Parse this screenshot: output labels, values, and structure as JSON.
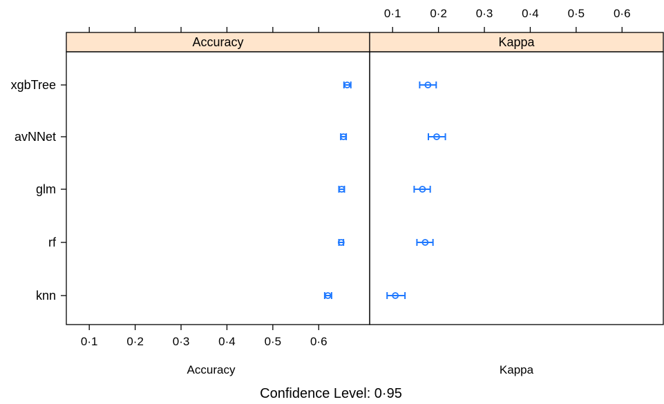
{
  "chart_data": {
    "type": "dotplot-ci",
    "footer": "Confidence Level: 0·95",
    "categories": [
      "xgbTree",
      "avNNet",
      "glm",
      "rf",
      "knn"
    ],
    "xlim": [
      0.05,
      0.705
    ],
    "tick_values": [
      0.1,
      0.2,
      0.3,
      0.4,
      0.5,
      0.6
    ],
    "tick_labels": [
      "0·1",
      "0·2",
      "0·3",
      "0·4",
      "0·5",
      "0·6"
    ],
    "panels": [
      {
        "strip": "Accuracy",
        "xlabel": "Accuracy",
        "tick_side": "bottom",
        "points": [
          {
            "model": "xgbTree",
            "mean": 0.662,
            "lower": 0.655,
            "upper": 0.67
          },
          {
            "model": "avNNet",
            "mean": 0.654,
            "lower": 0.648,
            "upper": 0.66
          },
          {
            "model": "glm",
            "mean": 0.65,
            "lower": 0.644,
            "upper": 0.656
          },
          {
            "model": "rf",
            "mean": 0.649,
            "lower": 0.644,
            "upper": 0.654
          },
          {
            "model": "knn",
            "mean": 0.62,
            "lower": 0.613,
            "upper": 0.628
          }
        ]
      },
      {
        "strip": "Kappa",
        "xlabel": "Kappa",
        "tick_side": "top",
        "points": [
          {
            "model": "xgbTree",
            "mean": 0.177,
            "lower": 0.159,
            "upper": 0.195
          },
          {
            "model": "avNNet",
            "mean": 0.196,
            "lower": 0.178,
            "upper": 0.215
          },
          {
            "model": "glm",
            "mean": 0.165,
            "lower": 0.147,
            "upper": 0.182
          },
          {
            "model": "rf",
            "mean": 0.171,
            "lower": 0.153,
            "upper": 0.188
          },
          {
            "model": "knn",
            "mean": 0.106,
            "lower": 0.088,
            "upper": 0.127
          }
        ]
      }
    ],
    "legend": "none",
    "grid": false
  }
}
